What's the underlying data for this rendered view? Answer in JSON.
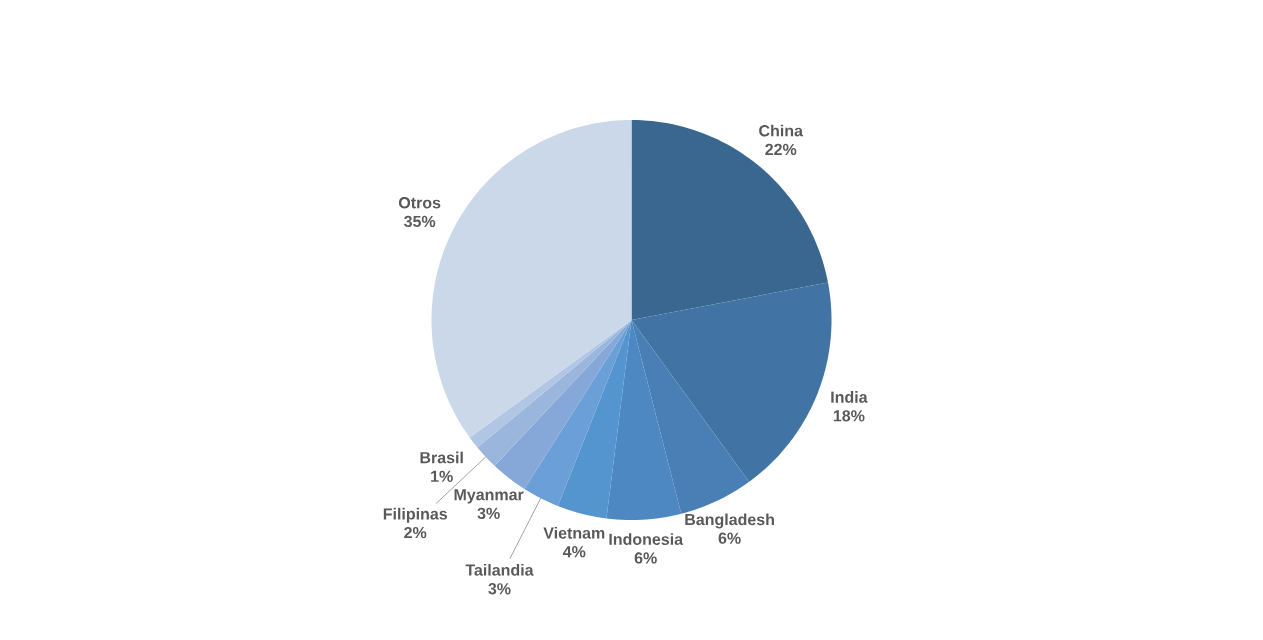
{
  "chart_data": {
    "type": "pie",
    "categories": [
      "China",
      "India",
      "Bangladesh",
      "Indonesia",
      "Vietnam",
      "Tailandia",
      "Myanmar",
      "Filipinas",
      "Brasil",
      "Otros"
    ],
    "values": [
      22,
      18,
      6,
      6,
      4,
      3,
      3,
      2,
      1,
      35
    ],
    "value_labels": [
      "22%",
      "18%",
      "6%",
      "6%",
      "4%",
      "3%",
      "3%",
      "2%",
      "1%",
      "35%"
    ],
    "colors": [
      "#3a6790",
      "#4174a4",
      "#4a7fb5",
      "#4d88c2",
      "#5595cf",
      "#6a9fd8",
      "#86a8d8",
      "#9bb6dd",
      "#b1c6e4",
      "#cbd8ea"
    ]
  }
}
